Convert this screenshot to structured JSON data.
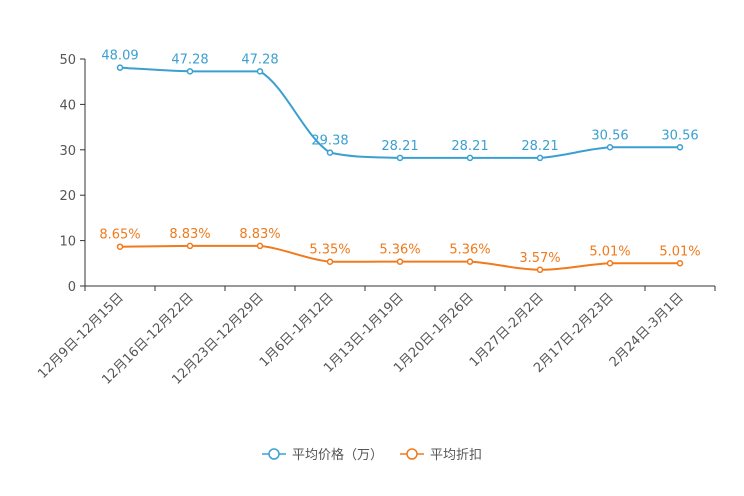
{
  "chart_data": {
    "type": "line",
    "categories": [
      "12月9日-12月15日",
      "12月16日-12月22日",
      "12月23日-12月29日",
      "1月6日-1月12日",
      "1月13日-1月19日",
      "1月20日-1月26日",
      "1月27日-2月2日",
      "2月17日-2月23日",
      "2月24日-3月1日"
    ],
    "ylim": [
      0,
      50
    ],
    "yticks": [
      0,
      10,
      20,
      30,
      40,
      50
    ],
    "series": [
      {
        "name": "平均价格（万）",
        "color": "#3ba0d0",
        "values": [
          48.09,
          47.28,
          47.28,
          29.38,
          28.21,
          28.21,
          28.21,
          30.56,
          30.56
        ],
        "labels": [
          "48.09",
          "47.28",
          "47.28",
          "29.38",
          "28.21",
          "28.21",
          "28.21",
          "30.56",
          "30.56"
        ]
      },
      {
        "name": "平均折扣",
        "color": "#f07a1c",
        "values": [
          8.65,
          8.83,
          8.83,
          5.35,
          5.36,
          5.36,
          3.57,
          5.01,
          5.01
        ],
        "labels": [
          "8.65%",
          "8.83%",
          "8.83%",
          "5.35%",
          "5.36%",
          "5.36%",
          "3.57%",
          "5.01%",
          "5.01%"
        ]
      }
    ],
    "legend_position": "bottom-center"
  }
}
